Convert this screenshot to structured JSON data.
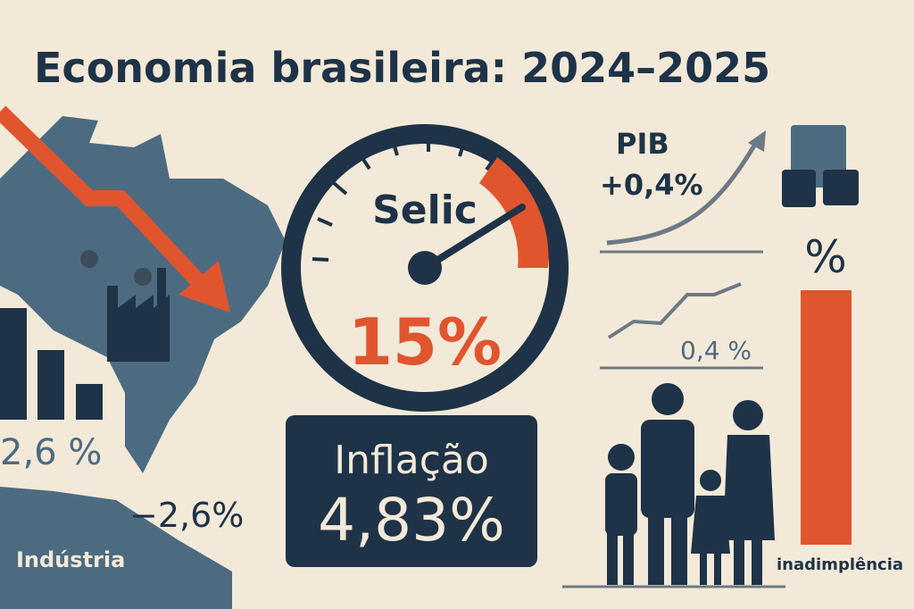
{
  "header": {
    "title": "Economia brasileira: 2024–2025"
  },
  "left": {
    "value_label": "2,6 %",
    "industry_change": "−2,6%",
    "industry_label": "Indústria"
  },
  "gauge": {
    "label": "Selic",
    "value": "15%"
  },
  "inflation": {
    "label": "Inflação",
    "value": "4,83%"
  },
  "right": {
    "pib_label": "PIB",
    "pib_value": "+0,4%",
    "second_value": "0,4 %",
    "percent_symbol": "%",
    "default_label": "inadimplência"
  }
}
